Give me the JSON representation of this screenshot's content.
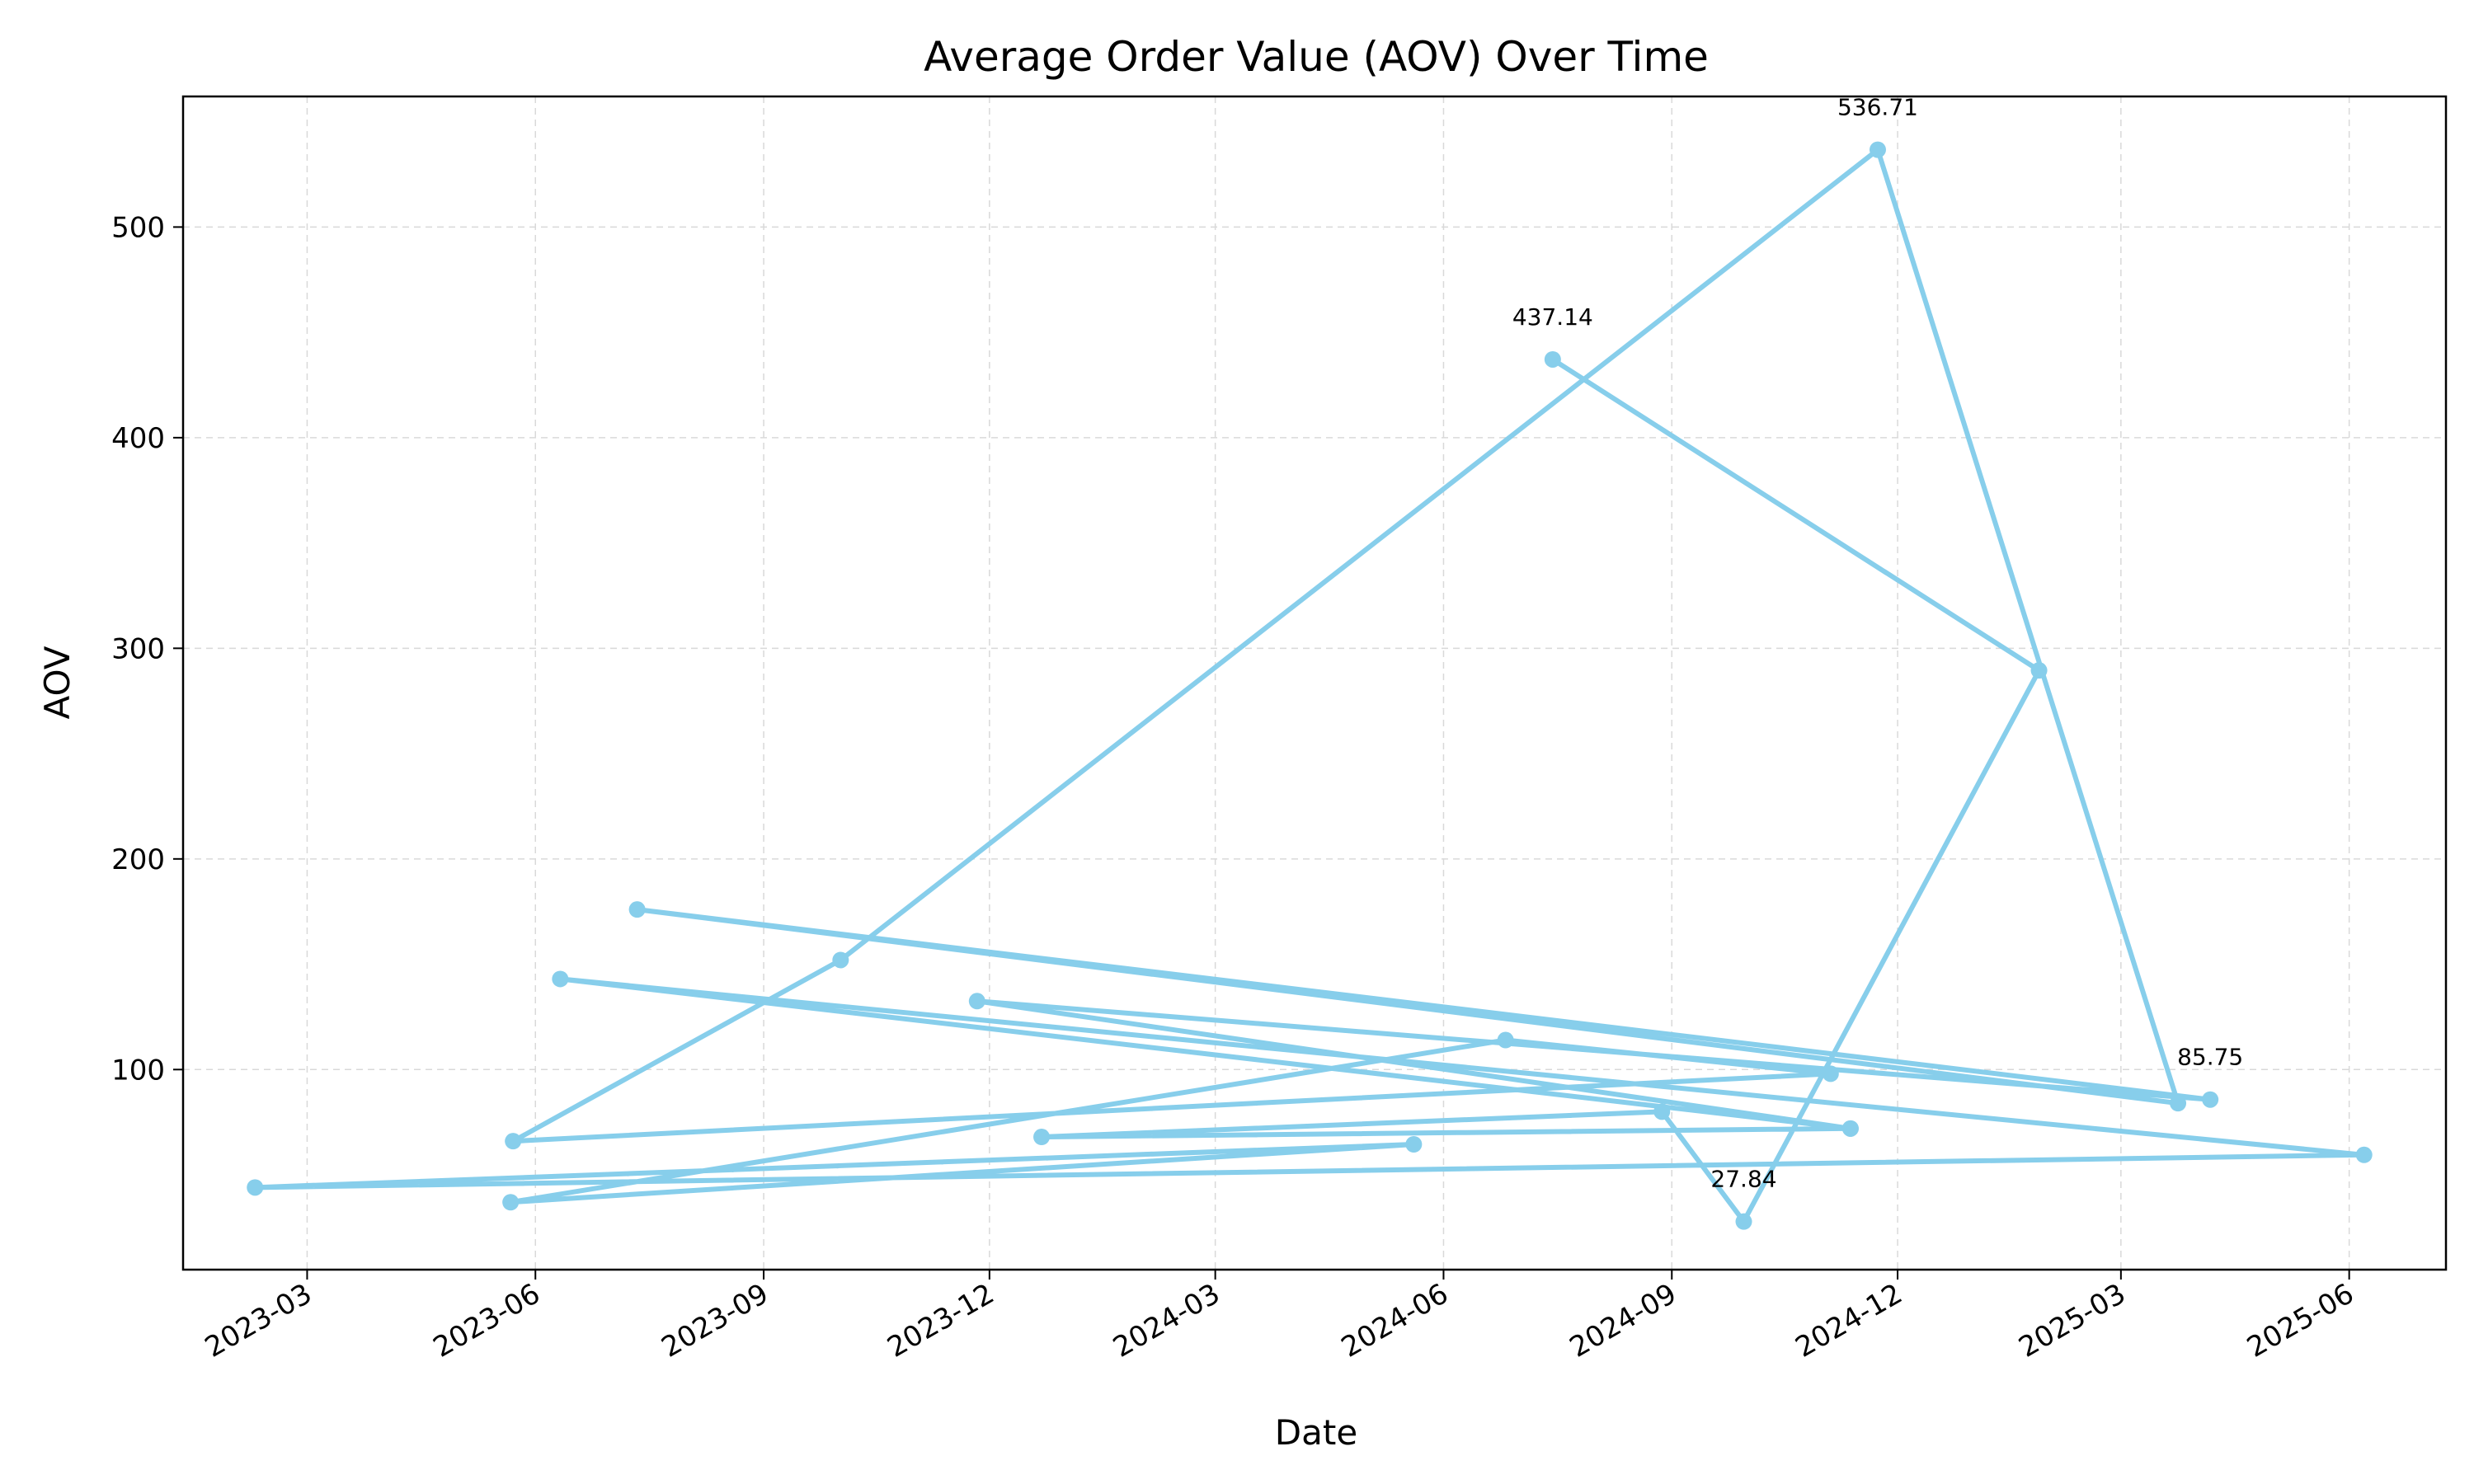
{
  "chart_data": {
    "type": "line",
    "title": "Average Order Value (AOV) Over Time",
    "xlabel": "Date",
    "ylabel": "AOV",
    "x_ticks": [
      "2023-03-01",
      "2023-06-01",
      "2023-09-01",
      "2023-12-01",
      "2024-03-01",
      "2024-06-01",
      "2024-09-01",
      "2024-12-01",
      "2025-03-01",
      "2025-06-01"
    ],
    "x_tick_labels": [
      "2023-03",
      "2023-06",
      "2023-09",
      "2023-12",
      "2024-03",
      "2024-06",
      "2024-09",
      "2024-12",
      "2025-03",
      "2025-06"
    ],
    "xlim": [
      "2023-01-10",
      "2025-07-10"
    ],
    "ylim": [
      5,
      562
    ],
    "y_ticks": [
      100,
      200,
      300,
      400,
      500
    ],
    "grid": true,
    "color": "#87CEEB",
    "annotations": [
      {
        "x": "2024-11-23",
        "y": 536.71,
        "text": "536.71"
      },
      {
        "x": "2024-07-15",
        "y": 437.14,
        "text": "437.14"
      },
      {
        "x": "2025-04-06",
        "y": 85.75,
        "text": "85.75"
      },
      {
        "x": "2024-09-30",
        "y": 27.84,
        "text": "27.84"
      }
    ],
    "series": [
      {
        "x": [
          "2024-07-15",
          "2025-01-27",
          "2024-09-30",
          "2024-08-28",
          "2023-12-22",
          "2024-11-12",
          "2023-06-11",
          "2025-06-07",
          "2023-02-08",
          "2024-05-20",
          "2023-05-22",
          "2024-06-26",
          "2024-11-04",
          "2023-05-23",
          "2023-10-02",
          "2024-11-23",
          "2025-03-24",
          "2023-07-12",
          "2025-04-06",
          "2023-11-26",
          "2024-11-12"
        ],
        "y": [
          437.14,
          289.5,
          27.84,
          80.0,
          68.0,
          72.0,
          143.0,
          59.5,
          44.0,
          64.5,
          37.0,
          114.0,
          98.0,
          66.0,
          152.0,
          536.71,
          84.0,
          176.0,
          85.75,
          132.5,
          72.0
        ]
      }
    ]
  }
}
